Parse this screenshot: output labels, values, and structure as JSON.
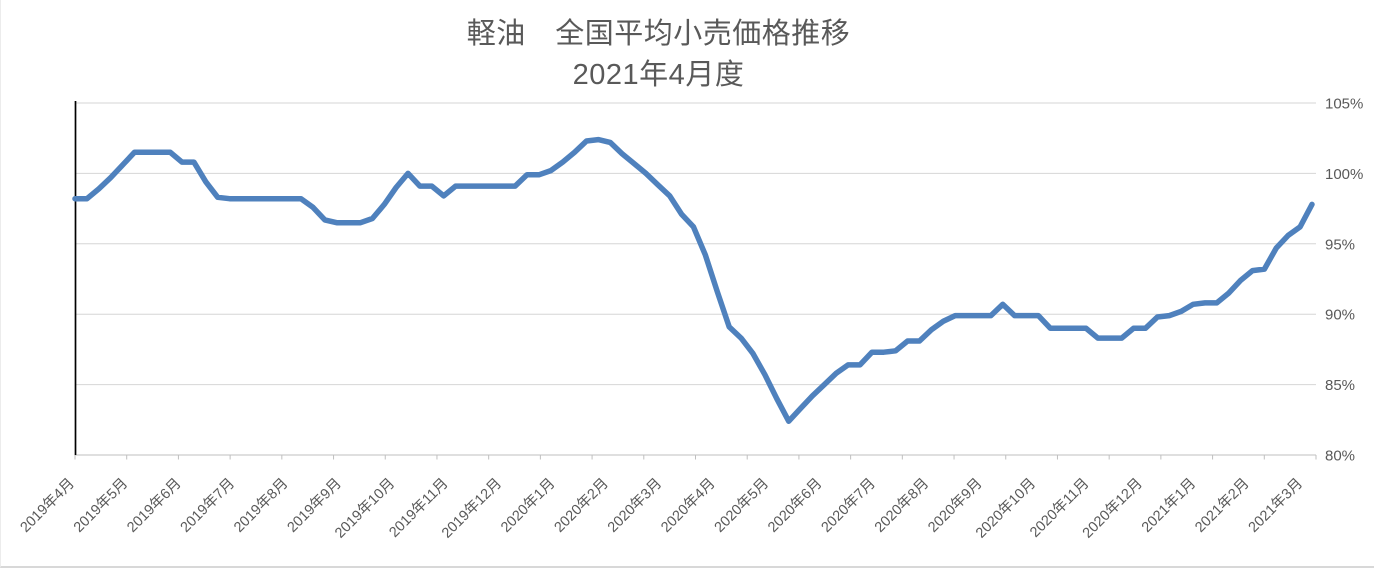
{
  "chart": {
    "title_line1": "軽油　全国平均小売価格推移",
    "title_line2": "2021年4月度",
    "title_color": "#595959"
  },
  "colors": {
    "series_line": "#4F81BD",
    "gridline": "#D6D6D6",
    "axis_line": "#BFBFBF",
    "axis_label": "#595959",
    "category_axis_marker": "#000000",
    "background": "#FFFFFF"
  },
  "chart_data": {
    "type": "line",
    "title": "軽油　全国平均小売価格推移 2021年4月度",
    "legend": false,
    "grid": true,
    "x_axis": {
      "label_rotation": -45,
      "x_unit": "week",
      "categories": [
        "2019年4月",
        "2019年5月",
        "2019年6月",
        "2019年7月",
        "2019年8月",
        "2019年9月",
        "2019年10月",
        "2019年11月",
        "2019年12月",
        "2020年1月",
        "2020年2月",
        "2020年3月",
        "2020年4月",
        "2020年5月",
        "2020年6月",
        "2020年7月",
        "2020年8月",
        "2020年9月",
        "2020年10月",
        "2020年11月",
        "2020年12月",
        "2021年1月",
        "2021年2月",
        "2021年3月"
      ]
    },
    "y_axis": {
      "min": 80,
      "max": 105,
      "step": 5,
      "side": "right",
      "tick_labels": [
        "105%",
        "100%",
        "95%",
        "90%",
        "85%",
        "80%"
      ],
      "format": "percent"
    },
    "series": [
      {
        "name": "",
        "color": "#4F81BD",
        "values": [
          98.2,
          98.2,
          98.9,
          99.7,
          100.6,
          101.5,
          101.5,
          101.5,
          101.5,
          100.8,
          100.8,
          99.4,
          98.3,
          98.2,
          98.2,
          98.2,
          98.2,
          98.2,
          98.2,
          98.2,
          97.6,
          96.7,
          96.5,
          96.5,
          96.5,
          96.8,
          97.8,
          99.0,
          100.0,
          99.1,
          99.1,
          98.4,
          99.1,
          99.1,
          99.1,
          99.1,
          99.1,
          99.1,
          99.9,
          99.9,
          100.2,
          100.8,
          101.5,
          102.3,
          102.4,
          102.2,
          101.4,
          100.7,
          100.0,
          99.2,
          98.4,
          97.1,
          96.2,
          94.2,
          91.6,
          89.1,
          88.3,
          87.2,
          85.7,
          84.0,
          82.4,
          83.3,
          84.2,
          85.0,
          85.8,
          86.4,
          86.4,
          87.3,
          87.3,
          87.4,
          88.1,
          88.1,
          88.9,
          89.5,
          89.9,
          89.9,
          89.9,
          89.9,
          90.7,
          89.9,
          89.9,
          89.9,
          89.0,
          89.0,
          89.0,
          89.0,
          88.3,
          88.3,
          88.3,
          89.0,
          89.0,
          89.8,
          89.9,
          90.2,
          90.7,
          90.8,
          90.8,
          91.5,
          92.4,
          93.1,
          93.2,
          94.7,
          95.6,
          96.2,
          97.8
        ]
      }
    ]
  }
}
